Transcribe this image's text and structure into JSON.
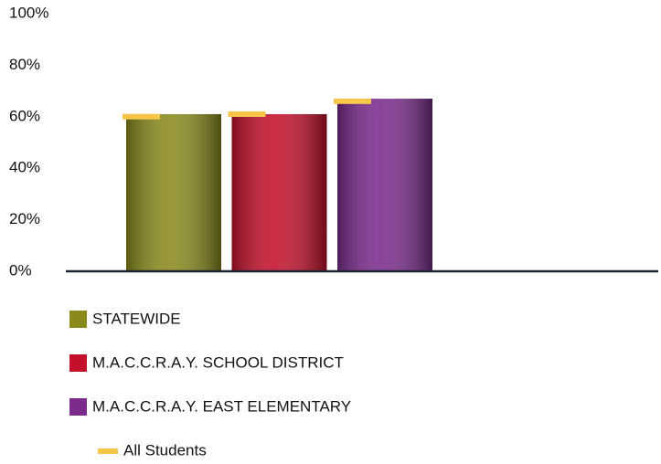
{
  "chart_data": {
    "type": "bar",
    "categories": [
      null,
      null,
      null
    ],
    "series": [
      {
        "name": "STATEWIDE",
        "color": "#8a8a1c",
        "values": [
          61,
          null,
          null
        ]
      },
      {
        "name": "M.A.C.C.R.A.Y. SCHOOL DISTRICT",
        "color": "#c4102c",
        "values": [
          null,
          61,
          null
        ]
      },
      {
        "name": "M.A.C.C.R.A.Y. EAST ELEMENTARY",
        "color": "#7b2b8c",
        "values": [
          null,
          null,
          67
        ]
      },
      {
        "name": "All Students",
        "color": "#f6c648",
        "type": "marker",
        "values": [
          60,
          61,
          66
        ]
      }
    ],
    "ylim": [
      0,
      100
    ],
    "yticks": [
      {
        "value": 0,
        "label": "0%"
      },
      {
        "value": 20,
        "label": "20%"
      },
      {
        "value": 40,
        "label": "40%"
      },
      {
        "value": 60,
        "label": "60%"
      },
      {
        "value": 80,
        "label": "80%"
      },
      {
        "value": 100,
        "label": "100%"
      }
    ],
    "grid": false
  }
}
